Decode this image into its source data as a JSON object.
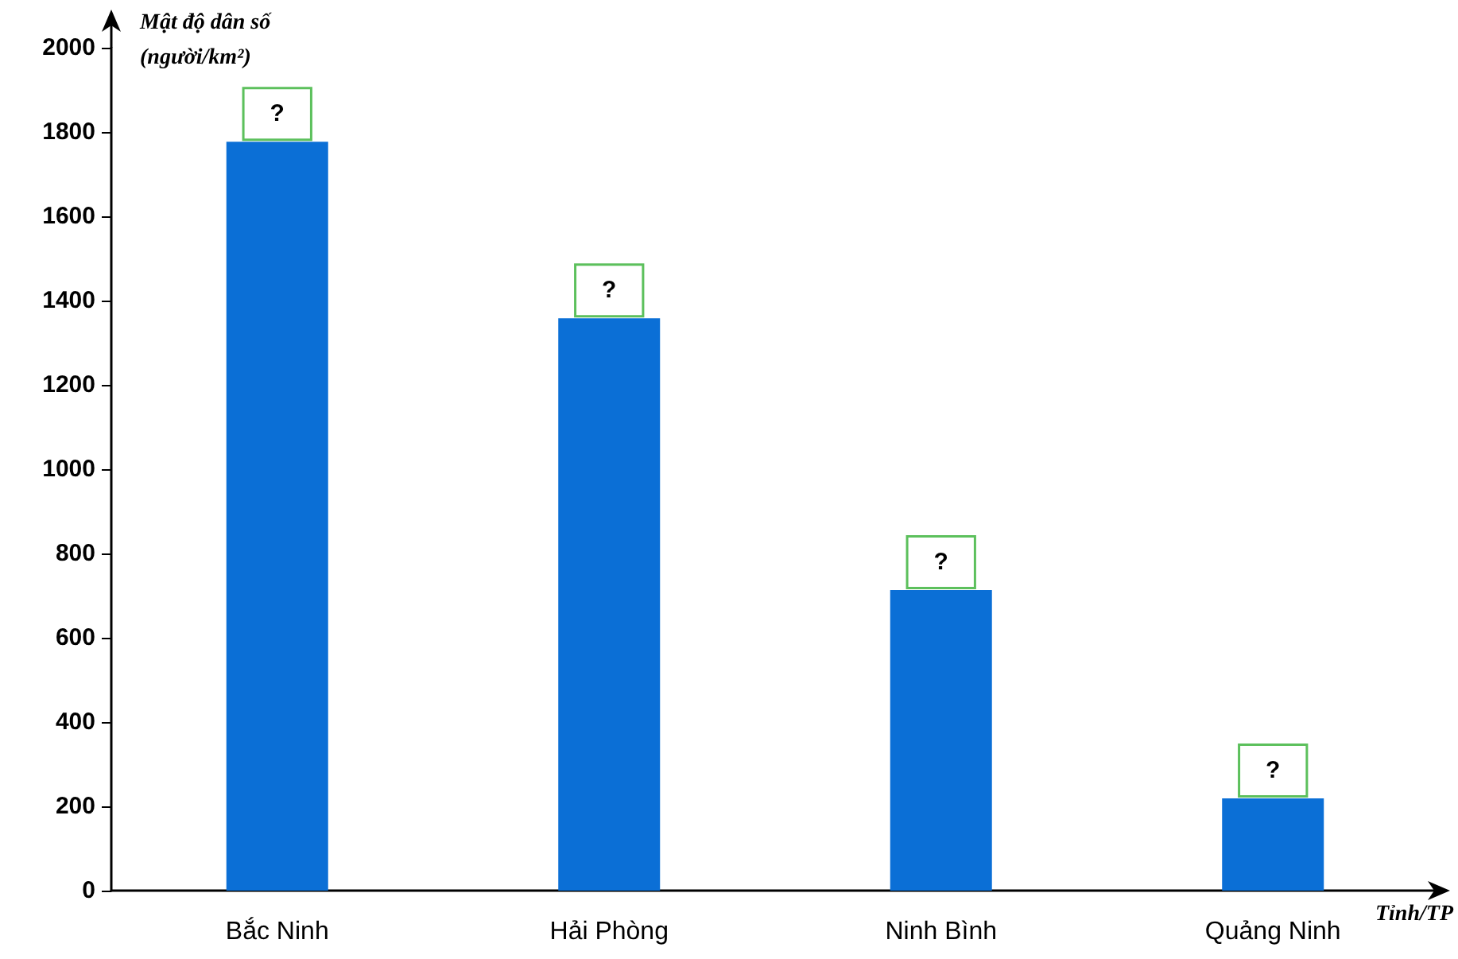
{
  "chart_data": {
    "type": "bar",
    "ylabel": "Mật độ dân số (người/km²)",
    "xlabel": "Tỉnh/TP",
    "categories": [
      "Bắc Ninh",
      "Hải Phòng",
      "Ninh Bình",
      "Quảng Ninh"
    ],
    "values": [
      1777,
      1358,
      713,
      219
    ],
    "value_labels": [
      "?",
      "?",
      "?",
      "?"
    ],
    "color": "#0b6fd6",
    "ylim": [
      0,
      2000
    ],
    "yticks": [
      0,
      200,
      400,
      600,
      800,
      1000,
      1200,
      1400,
      1600,
      1800,
      2000
    ],
    "grid": false
  }
}
